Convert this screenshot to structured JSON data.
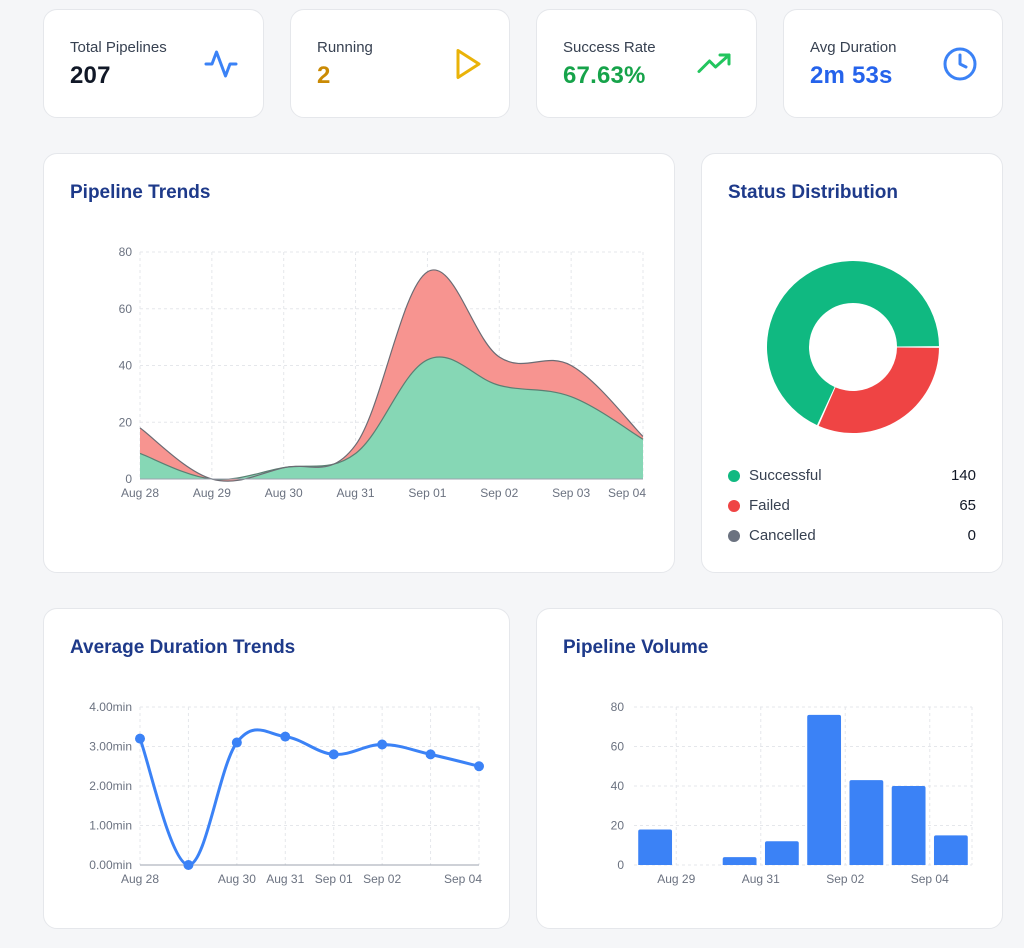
{
  "stats": [
    {
      "label": "Total Pipelines",
      "value": "207",
      "color": "#111827",
      "icon": "activity-icon",
      "icon_color": "#3b82f6"
    },
    {
      "label": "Running",
      "value": "2",
      "color": "#ca8a04",
      "icon": "play-icon",
      "icon_color": "#eab308"
    },
    {
      "label": "Success Rate",
      "value": "67.63%",
      "color": "#16a34a",
      "icon": "trending-up-icon",
      "icon_color": "#22c55e"
    },
    {
      "label": "Avg Duration",
      "value": "2m 53s",
      "color": "#2563eb",
      "icon": "clock-icon",
      "icon_color": "#3b82f6"
    }
  ],
  "trends_card": {
    "title": "Pipeline Trends"
  },
  "status_card": {
    "title": "Status Distribution",
    "legend": [
      {
        "label": "Successful",
        "count": "140",
        "color": "#10b981"
      },
      {
        "label": "Failed",
        "count": "65",
        "color": "#ef4444"
      },
      {
        "label": "Cancelled",
        "count": "0",
        "color": "#6b7280"
      }
    ]
  },
  "duration_card": {
    "title": "Average Duration Trends"
  },
  "volume_card": {
    "title": "Pipeline Volume"
  },
  "chart_data": [
    {
      "type": "area",
      "stacked": true,
      "title": "Pipeline Trends",
      "categories": [
        "Aug 28",
        "Aug 29",
        "Aug 30",
        "Aug 31",
        "Sep 01",
        "Sep 02",
        "Sep 03",
        "Sep 04"
      ],
      "series": [
        {
          "values": [
            9,
            0,
            4,
            9,
            42,
            33,
            29,
            14
          ],
          "color": "#10b981",
          "fill": "#86d7b5"
        },
        {
          "values": [
            9,
            0,
            0,
            3,
            31,
            10,
            11,
            1
          ],
          "color": "#ef4444",
          "fill": "#f79490"
        }
      ],
      "ylim": [
        0,
        80
      ],
      "yticks": [
        0,
        20,
        40,
        60,
        80
      ],
      "grid": true
    },
    {
      "type": "pie",
      "donut": true,
      "title": "Status Distribution",
      "labels": [
        "Successful",
        "Failed",
        "Cancelled"
      ],
      "values": [
        140,
        65,
        0
      ],
      "colors": [
        "#10b981",
        "#ef4444",
        "#6b7280"
      ]
    },
    {
      "type": "line",
      "title": "Average Duration Trends",
      "x_labels": [
        "Aug 28",
        "Aug 30",
        "Aug 31",
        "Sep 01",
        "Sep 02",
        "Sep 04"
      ],
      "x": [
        "Aug 28",
        "Aug 29",
        "Aug 30",
        "Aug 31",
        "Sep 01",
        "Sep 02",
        "Sep 03",
        "Sep 04"
      ],
      "values": [
        3.2,
        0.0,
        3.1,
        3.25,
        2.8,
        3.05,
        2.8,
        2.5
      ],
      "ylim": [
        0,
        4
      ],
      "yticks": [
        "0.00min",
        "1.00min",
        "2.00min",
        "3.00min",
        "4.00min"
      ],
      "color": "#3b82f6",
      "grid": true
    },
    {
      "type": "bar",
      "title": "Pipeline Volume",
      "categories": [
        "Aug 28",
        "Aug 29",
        "Aug 30",
        "Aug 31",
        "Sep 01",
        "Sep 02",
        "Sep 03",
        "Sep 04"
      ],
      "x_labels": [
        "Aug 29",
        "Aug 31",
        "Sep 02",
        "Sep 04"
      ],
      "values": [
        18,
        0,
        4,
        12,
        76,
        43,
        40,
        15
      ],
      "ylim": [
        0,
        80
      ],
      "yticks": [
        0,
        20,
        40,
        60,
        80
      ],
      "color": "#3b82f6",
      "grid": true
    }
  ]
}
